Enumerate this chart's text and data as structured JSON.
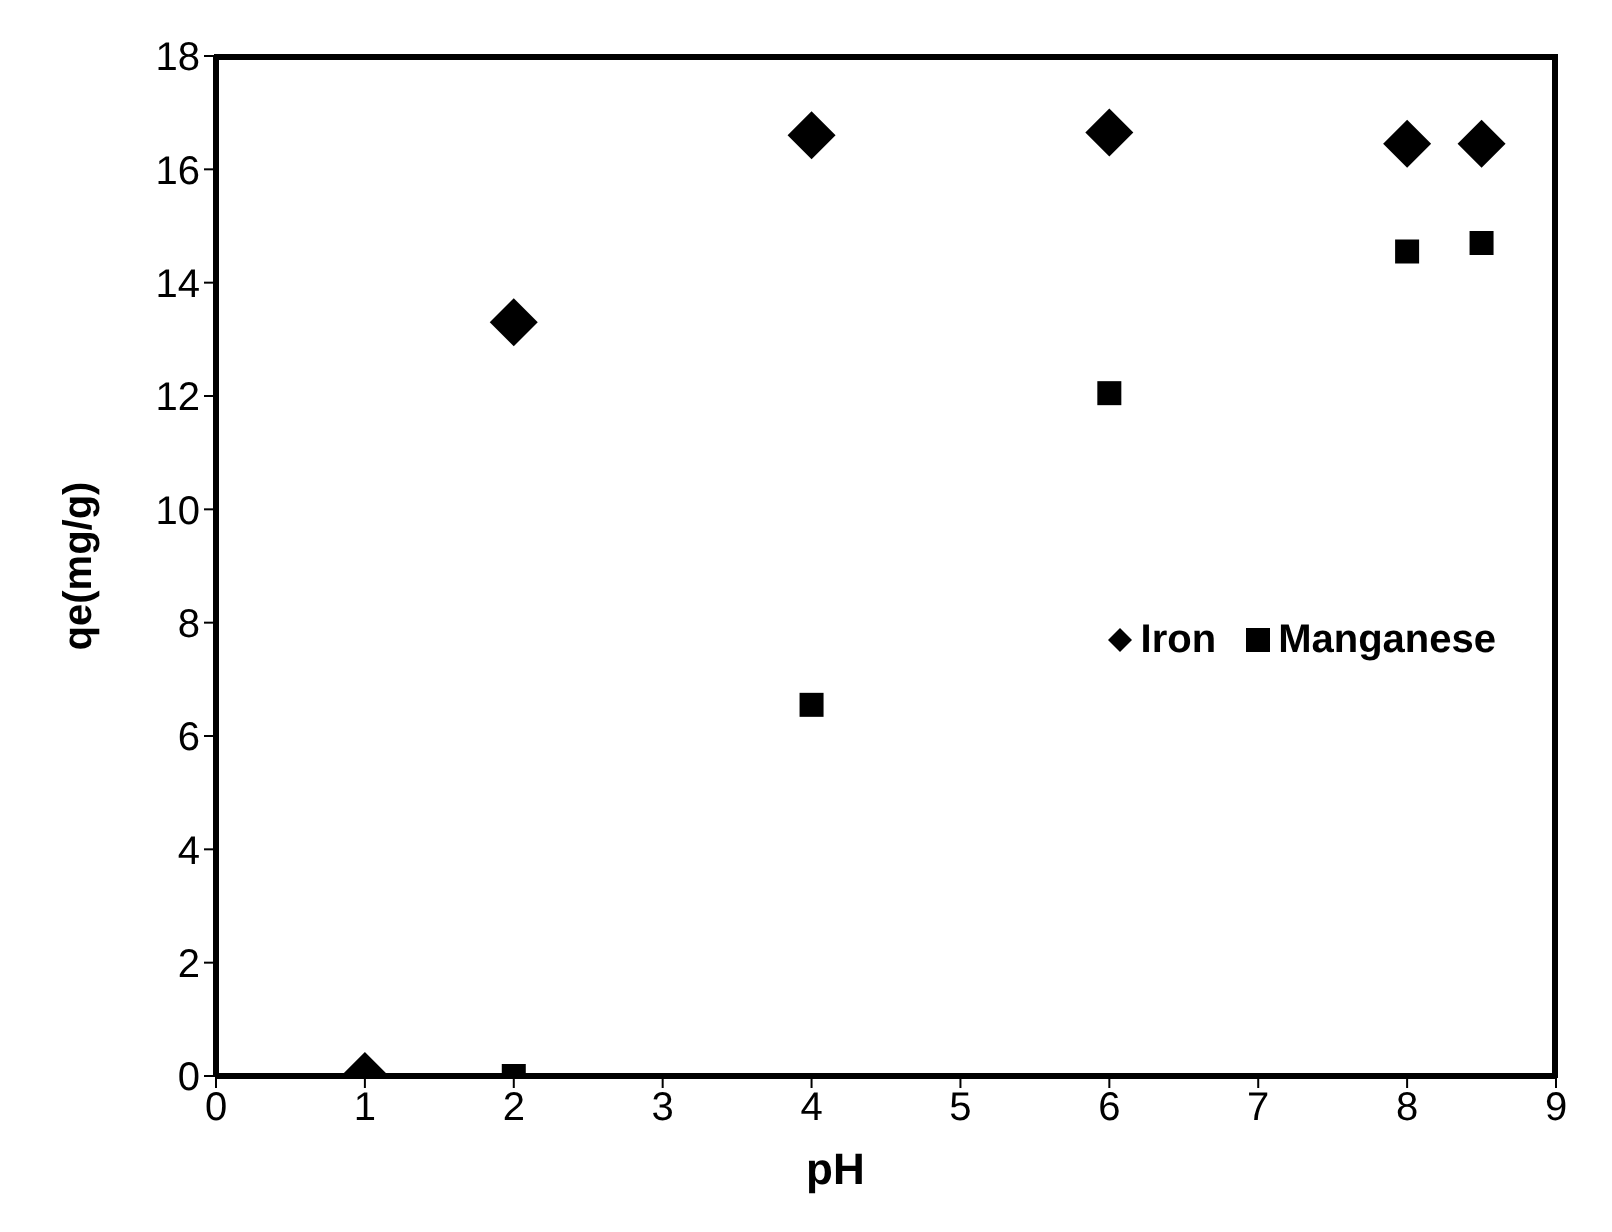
{
  "chart_data": {
    "type": "scatter",
    "xlabel": "pH",
    "ylabel": "qe(mg/g)",
    "xlim": [
      0,
      9
    ],
    "xticks": [
      0,
      1,
      2,
      3,
      4,
      5,
      6,
      7,
      8,
      9
    ],
    "ylim": [
      0,
      18
    ],
    "yticks": [
      0,
      2,
      4,
      6,
      8,
      10,
      12,
      14,
      16,
      18
    ],
    "grid": false,
    "legend": "right",
    "series": [
      {
        "name": "Iron",
        "color": "#000000",
        "marker": "diamond",
        "x": [
          1,
          2,
          4,
          6,
          8,
          8.5
        ],
        "values": [
          0,
          13.3,
          16.6,
          16.65,
          16.45,
          16.45
        ]
      },
      {
        "name": "Manganese",
        "color": "#000000",
        "marker": "square",
        "x": [
          2,
          4,
          6,
          8,
          8.5
        ],
        "values": [
          0,
          6.55,
          12.05,
          14.55,
          14.7
        ]
      }
    ]
  }
}
